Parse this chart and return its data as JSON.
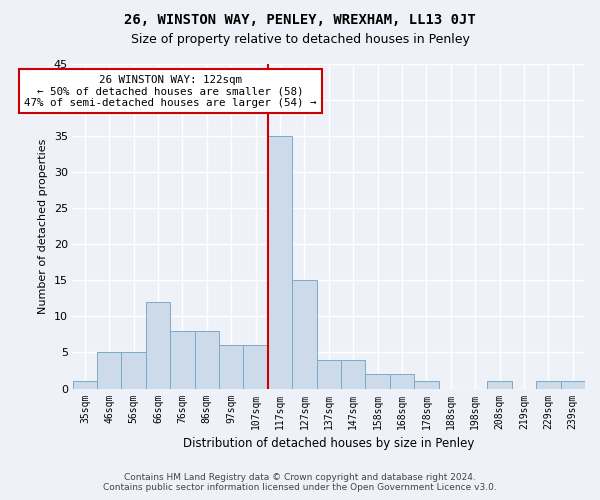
{
  "title": "26, WINSTON WAY, PENLEY, WREXHAM, LL13 0JT",
  "subtitle": "Size of property relative to detached houses in Penley",
  "xlabel": "Distribution of detached houses by size in Penley",
  "ylabel": "Number of detached properties",
  "categories": [
    "35sqm",
    "46sqm",
    "56sqm",
    "66sqm",
    "76sqm",
    "86sqm",
    "97sqm",
    "107sqm",
    "117sqm",
    "127sqm",
    "137sqm",
    "147sqm",
    "158sqm",
    "168sqm",
    "178sqm",
    "188sqm",
    "198sqm",
    "208sqm",
    "219sqm",
    "229sqm",
    "239sqm"
  ],
  "values": [
    1,
    5,
    5,
    12,
    8,
    8,
    6,
    6,
    35,
    15,
    4,
    4,
    2,
    2,
    1,
    0,
    0,
    1,
    0,
    1,
    1
  ],
  "bar_color": "#ccdaea",
  "bar_edge_color": "#7aaac8",
  "vline_index": 8,
  "annotation_text": "26 WINSTON WAY: 122sqm\n← 50% of detached houses are smaller (58)\n47% of semi-detached houses are larger (54) →",
  "annotation_box_facecolor": "#ffffff",
  "annotation_box_edgecolor": "#cc0000",
  "vline_color": "#cc0000",
  "ylim": [
    0,
    45
  ],
  "yticks": [
    0,
    5,
    10,
    15,
    20,
    25,
    30,
    35,
    40,
    45
  ],
  "fig_facecolor": "#eef2f8",
  "ax_facecolor": "#eef2f8",
  "grid_color": "#ffffff",
  "title_fontsize": 10,
  "subtitle_fontsize": 9,
  "ylabel_fontsize": 8,
  "xlabel_fontsize": 8.5,
  "tick_fontsize": 7,
  "footer_line1": "Contains HM Land Registry data © Crown copyright and database right 2024.",
  "footer_line2": "Contains public sector information licensed under the Open Government Licence v3.0."
}
